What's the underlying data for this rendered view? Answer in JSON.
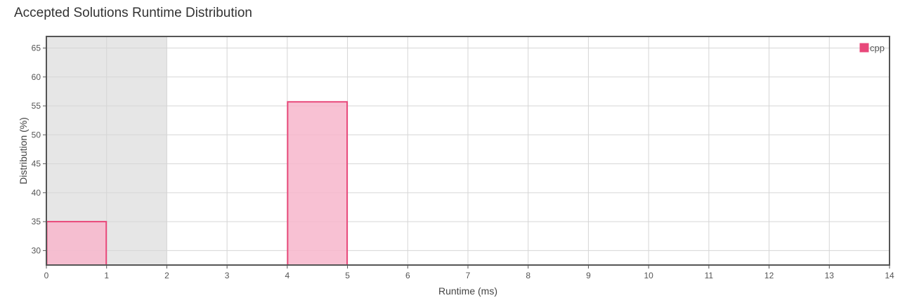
{
  "title": "Accepted Solutions Runtime Distribution",
  "chart_data": {
    "type": "bar",
    "xlabel": "Runtime (ms)",
    "ylabel": "Distribution (%)",
    "xlim": [
      0,
      14
    ],
    "ylim": [
      27.5,
      67
    ],
    "x_ticks": [
      "0",
      "1",
      "2",
      "3",
      "4",
      "5",
      "6",
      "7",
      "8",
      "9",
      "10",
      "11",
      "12",
      "13",
      "14"
    ],
    "y_ticks": [
      "30",
      "35",
      "40",
      "45",
      "50",
      "55",
      "60",
      "65"
    ],
    "grid": true,
    "legend_position": "top-right",
    "highlight_range": [
      0,
      2
    ],
    "series": [
      {
        "name": "cpp",
        "color": "#e8487a",
        "bars": [
          {
            "x0": 0,
            "x1": 1,
            "value": 35
          },
          {
            "x0": 4,
            "x1": 5,
            "value": 55.7
          }
        ]
      }
    ]
  },
  "colors": {
    "bar_fill": "#f7b6cb",
    "bar_stroke": "#e8487a",
    "highlight": "#e6e6e6",
    "grid": "#d6d6d6",
    "frame": "#555555"
  }
}
